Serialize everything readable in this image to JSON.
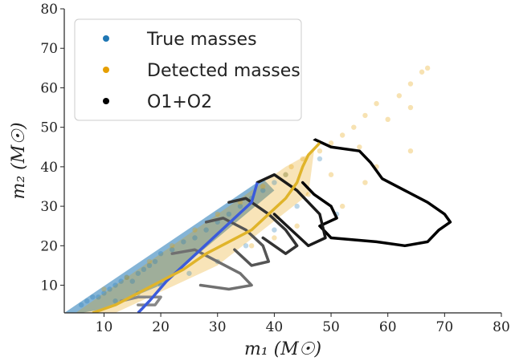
{
  "chart_data": {
    "type": "scatter",
    "title": "",
    "xlabel": "m₁ (M☉)",
    "ylabel": "m₂ (M☉)",
    "xlim": [
      3,
      80
    ],
    "ylim": [
      3,
      80
    ],
    "x_ticks": [
      10,
      20,
      30,
      40,
      50,
      60,
      70,
      80
    ],
    "y_ticks": [
      10,
      20,
      30,
      40,
      50,
      60,
      70,
      80
    ],
    "grid": false,
    "legend_position": "top-left",
    "legend": [
      {
        "label": "True masses",
        "color": "#1f77b4"
      },
      {
        "label": "Detected masses",
        "color": "#e69f00"
      },
      {
        "label": "O1+O2",
        "color": "#000000"
      }
    ],
    "true_masses_sample": [
      [
        6,
        5
      ],
      [
        7,
        6
      ],
      [
        8,
        7
      ],
      [
        9,
        7
      ],
      [
        10,
        8
      ],
      [
        11,
        9
      ],
      [
        12,
        10
      ],
      [
        13,
        11
      ],
      [
        14,
        12
      ],
      [
        15,
        11
      ],
      [
        16,
        13
      ],
      [
        17,
        14
      ],
      [
        18,
        15
      ],
      [
        19,
        16
      ],
      [
        20,
        18
      ],
      [
        22,
        19
      ],
      [
        24,
        21
      ],
      [
        26,
        22
      ],
      [
        28,
        24
      ],
      [
        30,
        26
      ],
      [
        32,
        28
      ],
      [
        34,
        30
      ],
      [
        36,
        32
      ],
      [
        38,
        34
      ],
      [
        40,
        36
      ],
      [
        42,
        38
      ],
      [
        12,
        6
      ],
      [
        16,
        8
      ],
      [
        20,
        10
      ],
      [
        25,
        13
      ],
      [
        30,
        16
      ],
      [
        35,
        20
      ],
      [
        40,
        24
      ],
      [
        44,
        30
      ],
      [
        48,
        42
      ],
      [
        51,
        28
      ]
    ],
    "detected_masses_sample": [
      [
        10,
        9
      ],
      [
        14,
        12
      ],
      [
        18,
        16
      ],
      [
        22,
        20
      ],
      [
        26,
        24
      ],
      [
        30,
        28
      ],
      [
        34,
        31
      ],
      [
        38,
        35
      ],
      [
        42,
        38
      ],
      [
        45,
        42
      ],
      [
        48,
        44
      ],
      [
        50,
        46
      ],
      [
        52,
        48
      ],
      [
        54,
        50
      ],
      [
        56,
        53
      ],
      [
        58,
        56
      ],
      [
        60,
        52
      ],
      [
        62,
        58
      ],
      [
        64,
        61
      ],
      [
        66,
        64
      ],
      [
        67,
        65
      ],
      [
        64,
        55
      ],
      [
        64,
        44
      ],
      [
        56,
        36
      ],
      [
        52,
        30
      ],
      [
        46,
        33
      ],
      [
        44,
        25
      ],
      [
        40,
        22
      ],
      [
        36,
        20
      ],
      [
        55,
        45
      ],
      [
        58,
        40
      ],
      [
        50,
        38
      ],
      [
        47,
        48
      ],
      [
        43,
        40
      ]
    ],
    "series": [
      {
        "name": "True masses",
        "color": "#3b5bdb",
        "x": [
          16,
          18,
          21,
          24,
          27,
          30,
          33,
          36,
          37
        ],
        "y": [
          3,
          6,
          11,
          15,
          19,
          23,
          27,
          31,
          36
        ]
      },
      {
        "name": "Detected masses",
        "color": "#e0b42a",
        "x": [
          8,
          12,
          16,
          20,
          24,
          28,
          32,
          36,
          39,
          42,
          44,
          45,
          46,
          48
        ],
        "y": [
          3,
          5,
          8,
          11,
          14,
          18,
          21,
          24,
          28,
          32,
          36,
          40,
          43,
          46
        ]
      }
    ],
    "contours": [
      {
        "color": "#000000",
        "x": [
          47,
          50,
          55,
          57,
          59,
          63,
          67,
          70,
          71,
          69,
          67,
          63,
          58,
          50,
          48,
          51,
          50,
          47,
          45
        ],
        "y": [
          47,
          45,
          44,
          41,
          37,
          34,
          31,
          28,
          26,
          24,
          21,
          20,
          21,
          22,
          25,
          27,
          30,
          33,
          36
        ]
      },
      {
        "color": "#1a1a1a",
        "x": [
          37,
          40,
          44,
          48,
          49,
          46,
          43,
          40
        ],
        "y": [
          36,
          38,
          34,
          28,
          22,
          20,
          24,
          28
        ]
      },
      {
        "color": "#333333",
        "x": [
          32,
          35,
          39,
          42,
          44,
          42,
          38
        ],
        "y": [
          31,
          32,
          28,
          24,
          20,
          18,
          22
        ]
      },
      {
        "color": "#555555",
        "x": [
          28,
          31,
          35,
          38,
          39,
          36,
          33
        ],
        "y": [
          26,
          27,
          24,
          20,
          16,
          15,
          19
        ]
      },
      {
        "color": "#707070",
        "x": [
          22,
          26,
          30,
          34,
          36,
          32,
          27
        ],
        "y": [
          18,
          19,
          16,
          13,
          10,
          9,
          10
        ]
      },
      {
        "color": "#888888",
        "x": [
          13,
          16,
          20,
          19,
          16
        ],
        "y": [
          6,
          7,
          7,
          5,
          5
        ]
      }
    ]
  }
}
